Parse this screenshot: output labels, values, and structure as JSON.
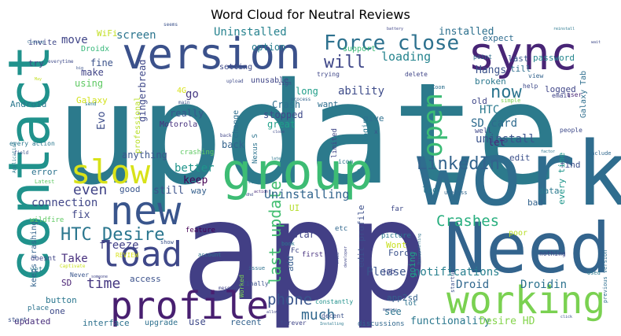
{
  "chart_data": {
    "type": "word_cloud",
    "title": "Word Cloud for Neutral Reviews",
    "words": [
      {
        "text": "update",
        "weight": 100,
        "color": "#2c7a8c"
      },
      {
        "text": "app",
        "weight": 92,
        "color": "#423f85"
      },
      {
        "text": "work",
        "weight": 64,
        "color": "#2f6d8e"
      },
      {
        "text": "Need",
        "weight": 58,
        "color": "#33648d"
      },
      {
        "text": "contact",
        "weight": 44,
        "color": "#20928c"
      },
      {
        "text": "group",
        "weight": 40,
        "color": "#3dbc74"
      },
      {
        "text": "version",
        "weight": 36,
        "color": "#3b518b"
      },
      {
        "text": "sync",
        "weight": 32,
        "color": "#482576"
      },
      {
        "text": "new",
        "weight": 30,
        "color": "#39558c"
      },
      {
        "text": "profile",
        "weight": 28,
        "color": "#481f70"
      },
      {
        "text": "working",
        "weight": 28,
        "color": "#7ad151"
      },
      {
        "text": "load",
        "weight": 24,
        "color": "#3f4889"
      },
      {
        "text": "slow",
        "weight": 22,
        "color": "#d8e219"
      },
      {
        "text": "open",
        "weight": 21,
        "color": "#3bbb75"
      },
      {
        "text": "Force close",
        "weight": 18,
        "color": "#2d718e"
      },
      {
        "text": "LinkedIn",
        "weight": 16,
        "color": "#33638d"
      },
      {
        "text": "HTC Desire",
        "weight": 15,
        "color": "#2a768e"
      },
      {
        "text": "will",
        "weight": 14,
        "color": "#3f4788"
      },
      {
        "text": "last update",
        "weight": 14,
        "color": "#42be71"
      },
      {
        "text": "now",
        "weight": 13,
        "color": "#2b748e"
      },
      {
        "text": "Crashes",
        "weight": 12,
        "color": "#29af7f"
      },
      {
        "text": "phone",
        "weight": 12,
        "color": "#39558c"
      },
      {
        "text": "even",
        "weight": 12,
        "color": "#414487"
      },
      {
        "text": "much",
        "weight": 12,
        "color": "#31688e"
      },
      {
        "text": "loading",
        "weight": 11,
        "color": "#25848e"
      },
      {
        "text": "Uninstalling",
        "weight": 11,
        "color": "#32658e"
      },
      {
        "text": "time",
        "weight": 11,
        "color": "#453781"
      },
      {
        "text": "Uninstalled",
        "weight": 10,
        "color": "#26828e"
      },
      {
        "text": "ability",
        "weight": 10,
        "color": "#3e4c8a"
      },
      {
        "text": "better",
        "weight": 9,
        "color": "#1f958b"
      },
      {
        "text": "connection",
        "weight": 9,
        "color": "#404688"
      },
      {
        "text": "Please",
        "weight": 9,
        "color": "#3a548c"
      },
      {
        "text": "notifications",
        "weight": 9,
        "color": "#277f8e"
      },
      {
        "text": "functionality",
        "weight": 8,
        "color": "#2a778e"
      },
      {
        "text": "Desire HD",
        "weight": 8,
        "color": "#84d44b"
      },
      {
        "text": "installed",
        "weight": 8,
        "color": "#2d708e"
      },
      {
        "text": "Hangs",
        "weight": 8,
        "color": "#3b528b"
      },
      {
        "text": "SD card",
        "weight": 8,
        "color": "#2f6b8e"
      },
      {
        "text": "uninstall",
        "weight": 8,
        "color": "#3a548c"
      },
      {
        "text": "HTC",
        "weight": 8,
        "color": "#29798e"
      },
      {
        "text": "Droidin",
        "weight": 8,
        "color": "#2c728e"
      },
      {
        "text": "Droid",
        "weight": 8,
        "color": "#31688e"
      },
      {
        "text": "freeze",
        "weight": 8,
        "color": "#424086"
      },
      {
        "text": "Take",
        "weight": 8,
        "color": "#472f7d"
      },
      {
        "text": "move",
        "weight": 8,
        "color": "#404588"
      },
      {
        "text": "screen",
        "weight": 8,
        "color": "#2b758e"
      },
      {
        "text": "option",
        "weight": 7,
        "color": "#287d8e"
      },
      {
        "text": "long",
        "weight": 7,
        "color": "#1f9e89"
      },
      {
        "text": "Crash",
        "weight": 7,
        "color": "#2e6f8e"
      },
      {
        "text": "stopped",
        "weight": 7,
        "color": "#3e4a89"
      },
      {
        "text": "great",
        "weight": 7,
        "color": "#1fa088"
      },
      {
        "text": "keep",
        "weight": 7,
        "color": "#440154"
      },
      {
        "text": "still",
        "weight": 7,
        "color": "#3b528b"
      },
      {
        "text": "go",
        "weight": 7,
        "color": "#453882"
      },
      {
        "text": "Evo",
        "weight": 7,
        "color": "#3d4d8a"
      },
      {
        "text": "really",
        "weight": 6,
        "color": "#39568c"
      },
      {
        "text": "fix",
        "weight": 6,
        "color": "#404688"
      },
      {
        "text": "Motorola",
        "weight": 6,
        "color": "#46327e"
      },
      {
        "text": "anything",
        "weight": 6,
        "color": "#3a548c"
      },
      {
        "text": "back",
        "weight": 6,
        "color": "#33638d"
      },
      {
        "text": "gingerbread",
        "weight": 6,
        "color": "#3f4889"
      },
      {
        "text": "using",
        "weight": 6,
        "color": "#5ec962"
      },
      {
        "text": "make",
        "weight": 6,
        "color": "#414487"
      },
      {
        "text": "fine",
        "weight": 6,
        "color": "#3b528b"
      },
      {
        "text": "WiFi",
        "weight": 6,
        "color": "#c2df23"
      },
      {
        "text": "Galaxy",
        "weight": 6,
        "color": "#d2e21b"
      },
      {
        "text": "Android",
        "weight": 6,
        "color": "#2a788e"
      },
      {
        "text": "try",
        "weight": 6,
        "color": "#3f4788"
      },
      {
        "text": "last",
        "weight": 6,
        "color": "#38588c"
      },
      {
        "text": "till",
        "weight": 6,
        "color": "#2e6e8e"
      },
      {
        "text": "password",
        "weight": 6,
        "color": "#24868e"
      },
      {
        "text": "expect",
        "weight": 6,
        "color": "#2f6c8e"
      },
      {
        "text": "broken",
        "weight": 6,
        "color": "#2a788e"
      },
      {
        "text": "logged",
        "weight": 6,
        "color": "#404688"
      },
      {
        "text": "old",
        "weight": 6,
        "color": "#3f4788"
      },
      {
        "text": "want",
        "weight": 6,
        "color": "#2e6e8e"
      },
      {
        "text": "give",
        "weight": 6,
        "color": "#2e6f8e"
      },
      {
        "text": "let",
        "weight": 6,
        "color": "#482677"
      },
      {
        "text": "edit",
        "weight": 6,
        "color": "#3c508b"
      },
      {
        "text": "find",
        "weight": 6,
        "color": "#3c4f8a"
      },
      {
        "text": "data",
        "weight": 6,
        "color": "#2a788e"
      },
      {
        "text": "bad",
        "weight": 6,
        "color": "#33638d"
      },
      {
        "text": "log",
        "weight": 6,
        "color": "#2a778e"
      },
      {
        "text": "star",
        "weight": 6,
        "color": "#414487"
      },
      {
        "text": "Wont",
        "weight": 6,
        "color": "#c8e020"
      },
      {
        "text": "Force",
        "weight": 6,
        "color": "#3b528b"
      },
      {
        "text": "see",
        "weight": 6,
        "color": "#2c738e"
      },
      {
        "text": "app2sd",
        "weight": 6,
        "color": "#34608d"
      },
      {
        "text": "updated",
        "weight": 6,
        "color": "#472d7b"
      },
      {
        "text": "interface",
        "weight": 6,
        "color": "#2d718e"
      },
      {
        "text": "use",
        "weight": 6,
        "color": "#3e4989"
      },
      {
        "text": "recent",
        "weight": 6,
        "color": "#33628d"
      },
      {
        "text": "button",
        "weight": 6,
        "color": "#2a768e"
      },
      {
        "text": "access",
        "weight": 6,
        "color": "#3b518b"
      },
      {
        "text": "SD",
        "weight": 6,
        "color": "#482173"
      },
      {
        "text": "way",
        "weight": 6,
        "color": "#355f8d"
      },
      {
        "text": "error",
        "weight": 6,
        "color": "#2c738e"
      },
      {
        "text": "good",
        "weight": 6,
        "color": "#39558c"
      },
      {
        "text": "edit profile",
        "weight": 5,
        "color": "#3c4f8a"
      },
      {
        "text": "add",
        "weight": 5,
        "color": "#365d8d"
      },
      {
        "text": "UI",
        "weight": 5,
        "color": "#b5de2b"
      },
      {
        "text": "every time",
        "weight": 5,
        "color": "#1f968b"
      },
      {
        "text": "Galaxy Tab",
        "weight": 5,
        "color": "#2e6e8e"
      },
      {
        "text": "upgrade",
        "weight": 5,
        "color": "#2d708e"
      },
      {
        "text": "feature",
        "weight": 5,
        "color": "#440154"
      },
      {
        "text": "keeps crashing",
        "weight": 5,
        "color": "#33638d"
      },
      {
        "text": "professional",
        "weight": 5,
        "color": "#b8de29"
      },
      {
        "text": "Nexus S",
        "weight": 5,
        "color": "#2c738e"
      },
      {
        "text": "change",
        "weight": 5,
        "color": "#2e6e8e"
      },
      {
        "text": "limited",
        "weight": 5,
        "color": "#3f4788"
      },
      {
        "text": "login",
        "weight": 5,
        "color": "#2a788e"
      },
      {
        "text": "support",
        "weight": 5,
        "color": "#3aba76"
      },
      {
        "text": "setting",
        "weight": 5,
        "color": "#3e4a89"
      },
      {
        "text": "unusable",
        "weight": 5,
        "color": "#404688"
      },
      {
        "text": "Droidx",
        "weight": 5,
        "color": "#35b779"
      },
      {
        "text": "invite",
        "weight": 5,
        "color": "#3f4889"
      },
      {
        "text": "4G",
        "weight": 5,
        "color": "#d8e219"
      },
      {
        "text": "Fc",
        "weight": 5,
        "color": "#3f4889"
      },
      {
        "text": "job",
        "weight": 5,
        "color": "#404588"
      },
      {
        "text": "going",
        "weight": 5,
        "color": "#20a486"
      },
      {
        "text": "picture",
        "weight": 5,
        "color": "#2a788e"
      },
      {
        "text": "etc",
        "weight": 5,
        "color": "#31688e"
      },
      {
        "text": "far",
        "weight": 5,
        "color": "#3e4a89"
      },
      {
        "text": "poor",
        "weight": 5,
        "color": "#b8de29"
      },
      {
        "text": "REVIEW",
        "weight": 4,
        "color": "#d8e219"
      },
      {
        "text": "one",
        "weight": 4,
        "color": "#3e4a89"
      },
      {
        "text": "place",
        "weight": 4,
        "color": "#2c738e"
      },
      {
        "text": "start",
        "weight": 4,
        "color": "#3b528b"
      },
      {
        "text": "yet",
        "weight": 4,
        "color": "#2a788e"
      },
      {
        "text": "doesnt",
        "weight": 4,
        "color": "#404688"
      },
      {
        "text": "Never",
        "weight": 4,
        "color": "#39558c"
      },
      {
        "text": "wildfire",
        "weight": 4,
        "color": "#5ec962"
      },
      {
        "text": "every action",
        "weight": 4,
        "color": "#2a788e"
      },
      {
        "text": "crashing",
        "weight": 4,
        "color": "#5ec962"
      },
      {
        "text": "Worked",
        "weight": 4,
        "color": "#7ad151"
      },
      {
        "text": "finally",
        "weight": 4,
        "color": "#3b528b"
      },
      {
        "text": "issue",
        "weight": 4,
        "color": "#2d708e"
      },
      {
        "text": "constantly",
        "weight": 4,
        "color": "#21918c"
      },
      {
        "text": "forever",
        "weight": 4,
        "color": "#404688"
      },
      {
        "text": "discussions",
        "weight": 4,
        "color": "#31688e"
      },
      {
        "text": "first",
        "weight": 4,
        "color": "#46307e"
      },
      {
        "text": "decent",
        "weight": 4,
        "color": "#3b528b"
      },
      {
        "text": "lot",
        "weight": 4,
        "color": "#2c738e"
      },
      {
        "text": "book",
        "weight": 4,
        "color": "#2a788e"
      },
      {
        "text": "trying",
        "weight": 4,
        "color": "#3f4788"
      },
      {
        "text": "sign",
        "weight": 4,
        "color": "#3e4a89"
      },
      {
        "text": "delete",
        "weight": 4,
        "color": "#404688"
      },
      {
        "text": "point",
        "weight": 4,
        "color": "#2e6e8e"
      },
      {
        "text": "view",
        "weight": 4,
        "color": "#33638d"
      },
      {
        "text": "help",
        "weight": 4,
        "color": "#3e4a89"
      },
      {
        "text": "email",
        "weight": 4,
        "color": "#404688"
      },
      {
        "text": "user",
        "weight": 4,
        "color": "#482677"
      },
      {
        "text": "simple",
        "weight": 4,
        "color": "#7ad151"
      },
      {
        "text": "people",
        "weight": 4,
        "color": "#3e4a89"
      },
      {
        "text": "well",
        "weight": 4,
        "color": "#3f4788"
      },
      {
        "text": "process",
        "weight": 4,
        "color": "#33638d"
      },
      {
        "text": "Xoom",
        "weight": 4,
        "color": "#2d708e"
      },
      {
        "text": "icon",
        "weight": 4,
        "color": "#2c738e"
      },
      {
        "text": "previous version",
        "weight": 4,
        "color": "#2e6e8e"
      },
      {
        "text": "nothing",
        "weight": 4,
        "color": "#3f4788"
      },
      {
        "text": "useless",
        "weight": 4,
        "color": "#31688e"
      },
      {
        "text": "startup",
        "weight": 4,
        "color": "#3b528b"
      },
      {
        "text": "Used",
        "weight": 4,
        "color": "#2a788e"
      },
      {
        "text": "include",
        "weight": 4,
        "color": "#31688e"
      },
      {
        "text": "main",
        "weight": 4,
        "color": "#3b528b"
      },
      {
        "text": "send",
        "weight": 4,
        "color": "#2a788e"
      },
      {
        "text": "upload",
        "weight": 4,
        "color": "#3e4a89"
      },
      {
        "text": "message",
        "weight": 4,
        "color": "#404688"
      },
      {
        "text": "show",
        "weight": 4,
        "color": "#3b528b"
      },
      {
        "text": "account",
        "weight": 4,
        "color": "#2c738e"
      },
      {
        "text": "Application",
        "weight": 4,
        "color": "#2a788e"
      },
      {
        "text": "Latest",
        "weight": 4,
        "color": "#5ec962"
      },
      {
        "text": "field",
        "weight": 3,
        "color": "#3b528b"
      },
      {
        "text": "Captivate",
        "weight": 3,
        "color": "#c8e020"
      },
      {
        "text": "Closing",
        "weight": 3,
        "color": "#31688e"
      },
      {
        "text": "everytime",
        "weight": 3,
        "color": "#3e4a89"
      },
      {
        "text": "seems",
        "weight": 3,
        "color": "#3b528b"
      },
      {
        "text": "battery",
        "weight": 3,
        "color": "#404688"
      },
      {
        "text": "reinstall",
        "weight": 3,
        "color": "#2a788e"
      },
      {
        "text": "wait",
        "weight": 3,
        "color": "#3e4a89"
      },
      {
        "text": "May",
        "weight": 3,
        "color": "#c2df23"
      },
      {
        "text": "big",
        "weight": 3,
        "color": "#3b528b"
      },
      {
        "text": "someone",
        "weight": 3,
        "color": "#404688"
      },
      {
        "text": "close",
        "weight": 3,
        "color": "#3e4a89"
      },
      {
        "text": "later",
        "weight": 3,
        "color": "#2a788e"
      },
      {
        "text": "x",
        "weight": 3,
        "color": "#3b528b"
      },
      {
        "text": "S",
        "weight": 3,
        "color": "#2a788e"
      },
      {
        "text": "action",
        "weight": 3,
        "color": "#482677"
      },
      {
        "text": "dhd",
        "weight": 3,
        "color": "#3e4a89"
      },
      {
        "text": "factor",
        "weight": 3,
        "color": "#2c738e"
      },
      {
        "text": "allow",
        "weight": 3,
        "color": "#404688"
      },
      {
        "text": "memory",
        "weight": 3,
        "color": "#3b528b"
      },
      {
        "text": "Installing",
        "weight": 3,
        "color": "#2a788e"
      },
      {
        "text": "developer",
        "weight": 3,
        "color": "#404688"
      },
      {
        "text": "Disappointing",
        "weight": 3,
        "color": "#2c738e"
      },
      {
        "text": "click",
        "weight": 3,
        "color": "#3b528b"
      },
      {
        "text": "tried",
        "weight": 3,
        "color": "#3e4a89"
      },
      {
        "text": "look",
        "weight": 3,
        "color": "#2a788e"
      },
      {
        "text": "back",
        "weight": 3,
        "color": "#404688"
      }
    ]
  }
}
